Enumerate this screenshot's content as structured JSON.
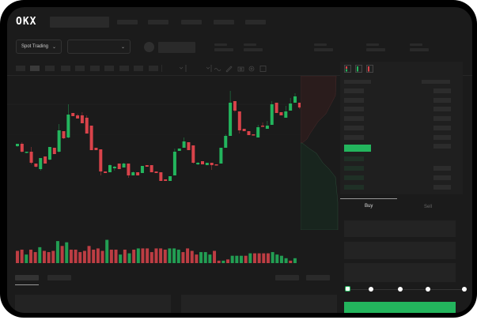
{
  "header": {
    "logo": "OKX"
  },
  "market_bar": {
    "mode_selector": "Spot Trading"
  },
  "trade_form": {
    "tabs": [
      "Buy",
      "Sell"
    ],
    "active_tab": "Buy",
    "slider_level_percent": 0
  },
  "colors": {
    "up": "#23b55d",
    "down": "#d9434a",
    "background": "#1b1b1b",
    "accent": "#23b55d"
  },
  "icons": [
    "chevron-down-icon",
    "orderbook-both-icon",
    "orderbook-bids-icon",
    "orderbook-asks-icon",
    "line-icon",
    "draw-icon",
    "camera-icon",
    "settings-icon",
    "fullscreen-icon"
  ],
  "chart_data": {
    "type": "candlestick",
    "candles": [
      [
        65,
        68,
        68,
        64
      ],
      [
        68,
        58,
        70,
        57
      ],
      [
        57,
        58,
        58,
        56
      ],
      [
        58,
        44,
        64,
        42
      ],
      [
        43,
        39,
        43,
        38
      ],
      [
        36,
        50,
        50,
        34
      ],
      [
        52,
        43,
        52,
        43
      ],
      [
        48,
        64,
        64,
        47
      ],
      [
        63,
        55,
        63,
        55
      ],
      [
        58,
        85,
        93,
        57
      ],
      [
        84,
        75,
        84,
        74
      ],
      [
        76,
        105,
        118,
        75
      ],
      [
        107,
        103,
        107,
        103
      ],
      [
        104,
        100,
        106,
        100
      ],
      [
        104,
        94,
        108,
        94
      ],
      [
        101,
        81,
        104,
        81
      ],
      [
        91,
        60,
        91,
        60
      ],
      [
        63,
        60,
        63,
        60
      ],
      [
        61,
        33,
        61,
        28
      ],
      [
        33,
        31,
        33,
        31
      ],
      [
        32,
        41,
        42,
        32
      ],
      [
        37,
        39,
        40,
        34
      ],
      [
        43,
        36,
        43,
        36
      ],
      [
        38,
        43,
        44,
        38
      ],
      [
        43,
        28,
        43,
        25
      ],
      [
        28,
        32,
        33,
        28
      ],
      [
        32,
        28,
        32,
        28
      ],
      [
        31,
        40,
        40,
        31
      ],
      [
        41,
        39,
        41,
        39
      ],
      [
        41,
        32,
        41,
        32
      ],
      [
        33,
        31,
        33,
        31
      ],
      [
        32,
        21,
        32,
        21
      ],
      [
        23,
        21,
        23,
        21
      ],
      [
        21,
        27,
        27,
        21
      ],
      [
        28,
        58,
        62,
        28
      ],
      [
        59,
        62,
        62,
        59
      ],
      [
        63,
        71,
        76,
        63
      ],
      [
        70,
        60,
        70,
        60
      ],
      [
        66,
        44,
        66,
        43
      ],
      [
        42,
        44,
        45,
        41
      ],
      [
        46,
        42,
        46,
        42
      ],
      [
        41,
        44,
        44,
        41
      ],
      [
        44,
        41,
        44,
        35
      ],
      [
        42,
        41,
        42,
        41
      ],
      [
        43,
        63,
        63,
        43
      ],
      [
        63,
        78,
        80,
        63
      ],
      [
        78,
        120,
        135,
        78
      ],
      [
        122,
        110,
        122,
        108
      ],
      [
        109,
        85,
        109,
        81
      ],
      [
        87,
        84,
        87,
        84
      ],
      [
        84,
        79,
        84,
        79
      ],
      [
        80,
        79,
        80,
        79
      ],
      [
        76,
        89,
        92,
        76
      ],
      [
        91,
        90,
        95,
        90
      ],
      [
        87,
        91,
        97,
        87
      ],
      [
        92,
        118,
        122,
        92
      ],
      [
        120,
        107,
        120,
        107
      ],
      [
        108,
        104,
        108,
        104
      ],
      [
        101,
        109,
        116,
        101
      ],
      [
        110,
        119,
        126,
        110
      ],
      [
        120,
        128,
        132,
        120
      ],
      [
        120,
        114,
        120,
        112
      ],
      [
        112,
        117,
        124,
        112
      ]
    ],
    "volume": [
      [
        10,
        0
      ],
      [
        11,
        0
      ],
      [
        7,
        1
      ],
      [
        11,
        0
      ],
      [
        9,
        0
      ],
      [
        13,
        1
      ],
      [
        10,
        0
      ],
      [
        9,
        0
      ],
      [
        10,
        0
      ],
      [
        18,
        1
      ],
      [
        14,
        0
      ],
      [
        17,
        1
      ],
      [
        11,
        0
      ],
      [
        11,
        0
      ],
      [
        9,
        0
      ],
      [
        10,
        0
      ],
      [
        14,
        0
      ],
      [
        11,
        0
      ],
      [
        12,
        0
      ],
      [
        10,
        0
      ],
      [
        19,
        1
      ],
      [
        11,
        0
      ],
      [
        11,
        0
      ],
      [
        7,
        1
      ],
      [
        11,
        0
      ],
      [
        8,
        1
      ],
      [
        11,
        0
      ],
      [
        12,
        1
      ],
      [
        12,
        0
      ],
      [
        12,
        0
      ],
      [
        9,
        0
      ],
      [
        12,
        0
      ],
      [
        12,
        0
      ],
      [
        11,
        0
      ],
      [
        12,
        1
      ],
      [
        12,
        1
      ],
      [
        11,
        1
      ],
      [
        9,
        0
      ],
      [
        12,
        0
      ],
      [
        10,
        0
      ],
      [
        7,
        0
      ],
      [
        9,
        1
      ],
      [
        9,
        1
      ],
      [
        7,
        1
      ],
      [
        10,
        0
      ],
      [
        2,
        0
      ],
      [
        2,
        1
      ],
      [
        3,
        0
      ],
      [
        6,
        1
      ],
      [
        6,
        1
      ],
      [
        6,
        1
      ],
      [
        6,
        0
      ],
      [
        8,
        1
      ],
      [
        8,
        0
      ],
      [
        8,
        0
      ],
      [
        8,
        0
      ],
      [
        8,
        0
      ],
      [
        9,
        1
      ],
      [
        7,
        1
      ],
      [
        6,
        1
      ],
      [
        4,
        1
      ],
      [
        2,
        0
      ],
      [
        4,
        1
      ]
    ]
  }
}
